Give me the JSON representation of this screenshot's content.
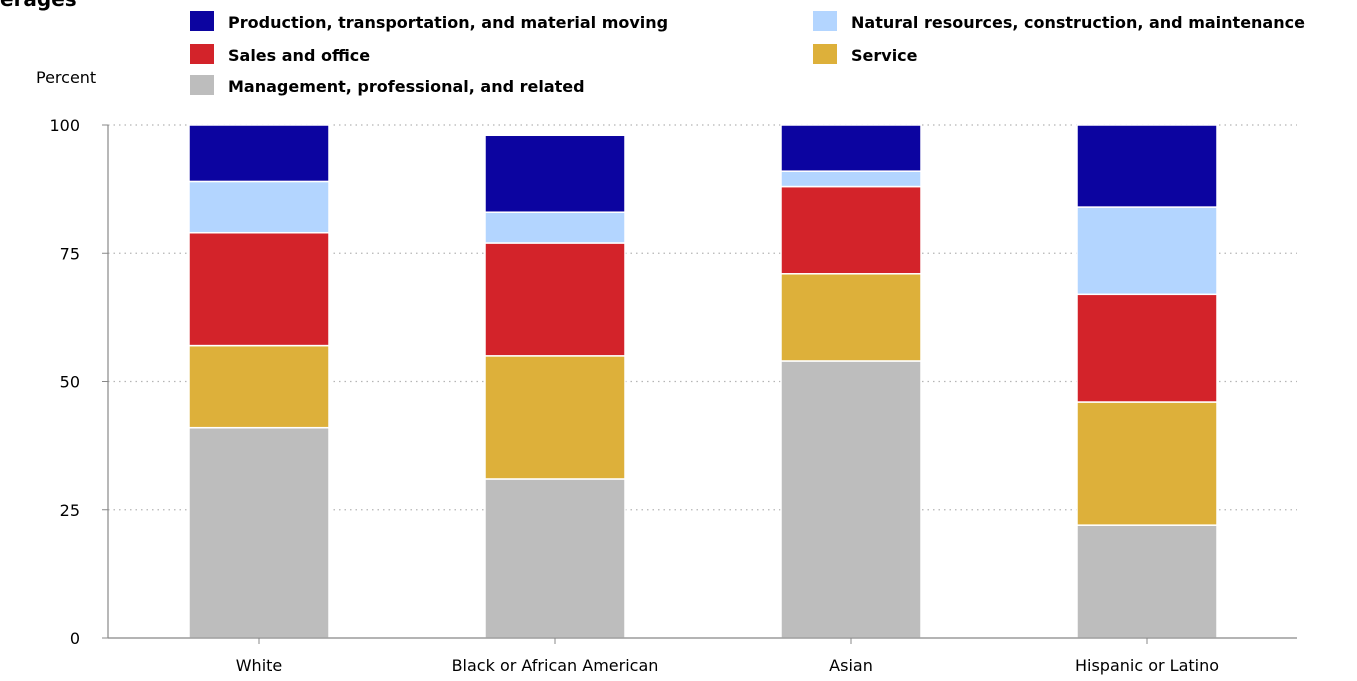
{
  "chart_data": {
    "type": "bar",
    "stacked": true,
    "title": "erages",
    "ylabel": "Percent",
    "xlabel": "",
    "ylim": [
      0,
      100
    ],
    "yticks": [
      0,
      25,
      50,
      75,
      100
    ],
    "grid": true,
    "legend_position": "top",
    "categories": [
      "White",
      "Black or African American",
      "Asian",
      "Hispanic or Latino"
    ],
    "series": [
      {
        "name": "Management, professional, and related",
        "color": "#bdbdbd",
        "values": [
          41,
          31,
          54,
          22
        ]
      },
      {
        "name": "Service",
        "color": "#ddb03a",
        "values": [
          16,
          24,
          17,
          24
        ]
      },
      {
        "name": "Sales and office",
        "color": "#d3232a",
        "values": [
          22,
          22,
          17,
          21
        ]
      },
      {
        "name": "Natural resources, construction, and maintenance",
        "color": "#b3d5ff",
        "values": [
          10,
          6,
          3,
          17
        ]
      },
      {
        "name": "Production, transportation, and material moving",
        "color": "#0c04a0",
        "values": [
          11,
          15,
          9,
          16
        ]
      }
    ],
    "legend": [
      "Production, transportation, and material moving",
      "Natural resources, construction, and maintenance",
      "Sales and office",
      "Service",
      "Management, professional, and related"
    ]
  }
}
